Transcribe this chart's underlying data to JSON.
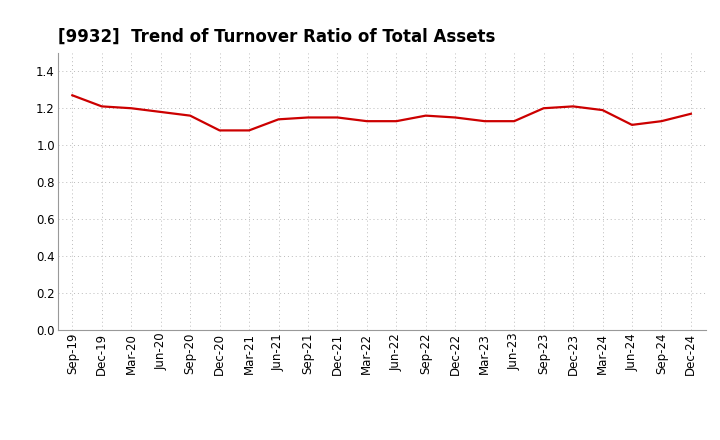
{
  "title": "[9932]  Trend of Turnover Ratio of Total Assets",
  "x_labels": [
    "Sep-19",
    "Dec-19",
    "Mar-20",
    "Jun-20",
    "Sep-20",
    "Dec-20",
    "Mar-21",
    "Jun-21",
    "Sep-21",
    "Dec-21",
    "Mar-22",
    "Jun-22",
    "Sep-22",
    "Dec-22",
    "Mar-23",
    "Jun-23",
    "Sep-23",
    "Dec-23",
    "Mar-24",
    "Jun-24",
    "Sep-24",
    "Dec-24"
  ],
  "y_values": [
    1.27,
    1.21,
    1.2,
    1.18,
    1.16,
    1.08,
    1.08,
    1.14,
    1.15,
    1.15,
    1.13,
    1.13,
    1.16,
    1.15,
    1.13,
    1.13,
    1.2,
    1.21,
    1.19,
    1.11,
    1.13,
    1.17
  ],
  "line_color": "#cc0000",
  "line_width": 1.6,
  "ylim": [
    0.0,
    1.5
  ],
  "yticks": [
    0.0,
    0.2,
    0.4,
    0.6,
    0.8,
    1.0,
    1.2,
    1.4
  ],
  "grid_color": "#bbbbbb",
  "background_color": "#ffffff",
  "title_fontsize": 12,
  "tick_fontsize": 8.5
}
